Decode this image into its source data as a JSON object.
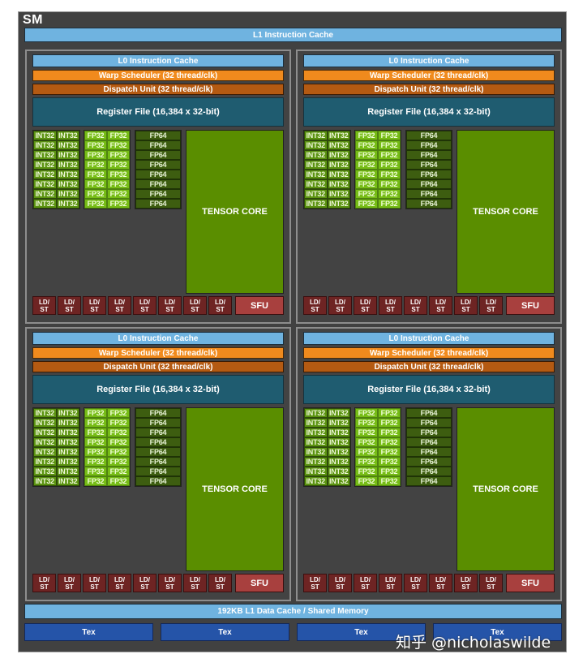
{
  "sm": {
    "title": "SM",
    "l1_instruction_cache": "L1 Instruction Cache",
    "l1_data_cache": "192KB L1 Data Cache / Shared Memory",
    "tex_units": [
      "Tex",
      "Tex",
      "Tex",
      "Tex"
    ]
  },
  "partition": {
    "l0_cache": "L0 Instruction Cache",
    "warp_scheduler": "Warp Scheduler (32 thread/clk)",
    "dispatch_unit": "Dispatch Unit (32 thread/clk)",
    "register_file": "Register File (16,384 x 32-bit)",
    "int32_label": "INT32",
    "fp32_label": "FP32",
    "fp64_label": "FP64",
    "tensor_core": "TENSOR CORE",
    "ldst_top": "LD/",
    "ldst_bottom": "ST",
    "sfu": "SFU",
    "rows": 8,
    "ldst_count": 8
  },
  "partitions_count": 4,
  "colors": {
    "sm_background": "#414141",
    "cache_blue": "#6fb3e0",
    "warp_orange": "#f08a1d",
    "dispatch_brown": "#b45a12",
    "register_teal": "#1f5c70",
    "int32_green": "#5b9311",
    "fp32_green": "#76bc16",
    "fp64_green": "#3d5d10",
    "tensor_green": "#5a8e00",
    "ldst_red": "#6e2423",
    "sfu_red": "#a8403e",
    "tex_blue": "#2554a8"
  },
  "watermark": "知乎 @nicholaswilde"
}
